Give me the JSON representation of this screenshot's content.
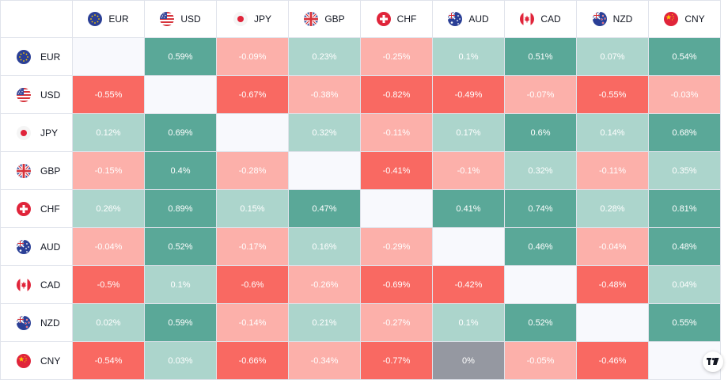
{
  "currencies": [
    {
      "code": "EUR",
      "flag": "eu-flag-icon"
    },
    {
      "code": "USD",
      "flag": "us-flag-icon"
    },
    {
      "code": "JPY",
      "flag": "jp-flag-icon"
    },
    {
      "code": "GBP",
      "flag": "gb-flag-icon"
    },
    {
      "code": "CHF",
      "flag": "ch-flag-icon"
    },
    {
      "code": "AUD",
      "flag": "au-flag-icon"
    },
    {
      "code": "CAD",
      "flag": "ca-flag-icon"
    },
    {
      "code": "NZD",
      "flag": "nz-flag-icon"
    },
    {
      "code": "CNY",
      "flag": "cn-flag-icon"
    }
  ],
  "values": [
    [
      null,
      "0.59%",
      "-0.09%",
      "0.23%",
      "-0.25%",
      "0.1%",
      "0.51%",
      "0.07%",
      "0.54%"
    ],
    [
      "-0.55%",
      null,
      "-0.67%",
      "-0.38%",
      "-0.82%",
      "-0.49%",
      "-0.07%",
      "-0.55%",
      "-0.03%"
    ],
    [
      "0.12%",
      "0.69%",
      null,
      "0.32%",
      "-0.11%",
      "0.17%",
      "0.6%",
      "0.14%",
      "0.68%"
    ],
    [
      "-0.15%",
      "0.4%",
      "-0.28%",
      null,
      "-0.41%",
      "-0.1%",
      "0.32%",
      "-0.11%",
      "0.35%"
    ],
    [
      "0.26%",
      "0.89%",
      "0.15%",
      "0.47%",
      null,
      "0.41%",
      "0.74%",
      "0.28%",
      "0.81%"
    ],
    [
      "-0.04%",
      "0.52%",
      "-0.17%",
      "0.16%",
      "-0.29%",
      null,
      "0.46%",
      "-0.04%",
      "0.48%"
    ],
    [
      "-0.5%",
      "0.1%",
      "-0.6%",
      "-0.26%",
      "-0.69%",
      "-0.42%",
      null,
      "-0.48%",
      "0.04%"
    ],
    [
      "0.02%",
      "0.59%",
      "-0.14%",
      "0.21%",
      "-0.27%",
      "0.1%",
      "0.52%",
      null,
      "0.55%"
    ],
    [
      "-0.54%",
      "0.03%",
      "-0.66%",
      "-0.34%",
      "-0.77%",
      "0%",
      "-0.05%",
      "-0.46%",
      null
    ]
  ],
  "colors": {
    "strong_positive": "#5aa898",
    "light_positive": "#acd5cc",
    "light_negative": "#fcb0aa",
    "strong_negative": "#f96962",
    "neutral": "#9598a1",
    "diagonal": "#f8f9fd"
  },
  "watermark": {
    "icon": "tradingview-logo-icon"
  }
}
